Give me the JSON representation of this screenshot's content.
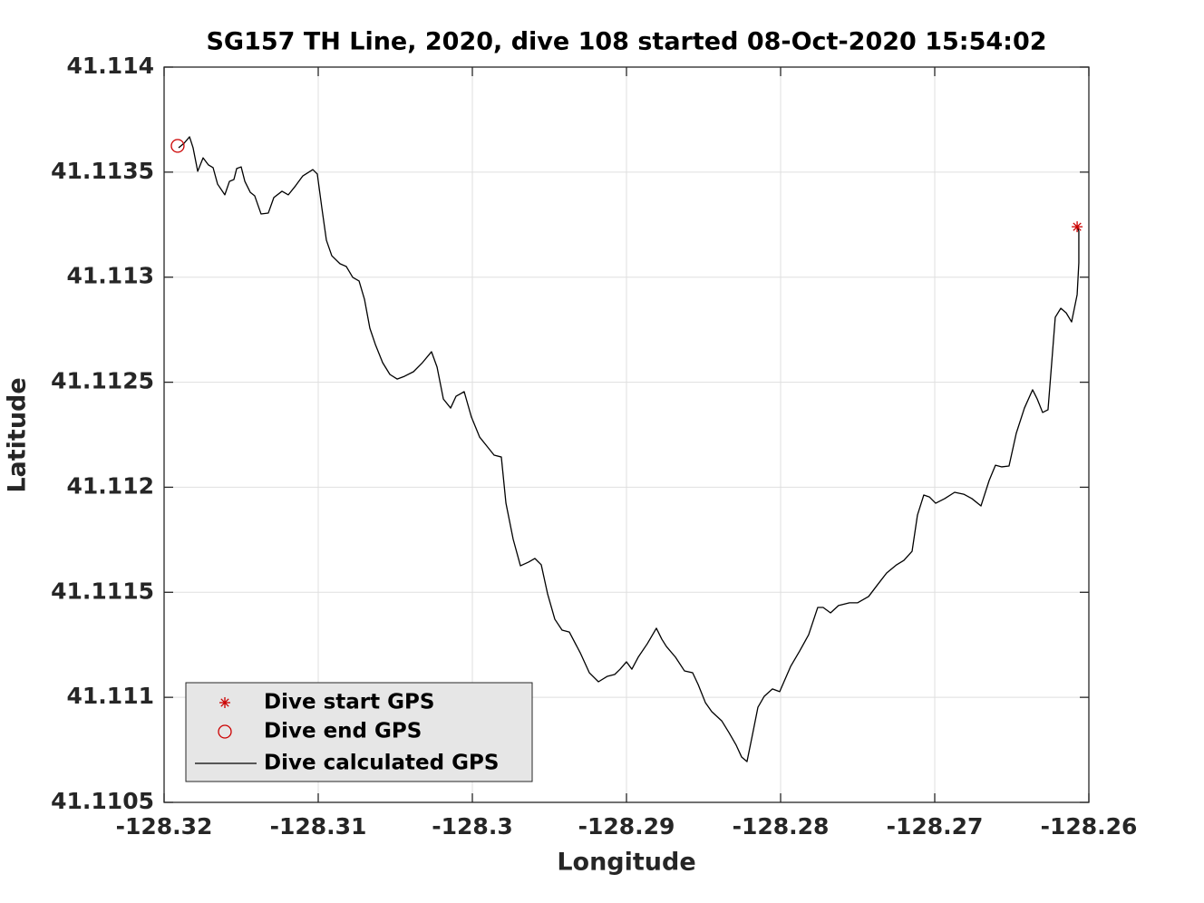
{
  "chart_data": {
    "type": "line",
    "title": "SG157 TH Line, 2020, dive 108 started 08-Oct-2020 15:54:02",
    "xlabel": "Longitude",
    "ylabel": "Latitude",
    "xlim": [
      -128.32,
      -128.26
    ],
    "xticks": [
      -128.32,
      -128.31,
      -128.3,
      -128.29,
      -128.28,
      -128.27,
      -128.26
    ],
    "ylim": [
      41.1105,
      41.114
    ],
    "yticks": [
      41.1105,
      41.111,
      41.1115,
      41.112,
      41.1125,
      41.113,
      41.1135,
      41.114
    ],
    "grid": true,
    "legend_position": "lower left",
    "series": [
      {
        "name": "Dive start GPS",
        "color": "#cc0000",
        "marker": "star",
        "x": [
          -128.26076
        ],
        "values": [
          41.11324
        ]
      },
      {
        "name": "Dive end GPS",
        "color": "#cc0000",
        "marker": "circle",
        "x": [
          -128.31912
        ],
        "values": [
          41.113625
        ]
      },
      {
        "name": "Dive calculated GPS",
        "color": "#000000",
        "marker": "none",
        "x": [
          -128.31906,
          -128.31871,
          -128.31835,
          -128.31812,
          -128.31782,
          -128.31747,
          -128.31712,
          -128.31682,
          -128.31653,
          -128.31606,
          -128.31576,
          -128.31547,
          -128.31529,
          -128.315,
          -128.31476,
          -128.31441,
          -128.31412,
          -128.31371,
          -128.31324,
          -128.31288,
          -128.31235,
          -128.31194,
          -128.31147,
          -128.311,
          -128.31035,
          -128.31006,
          -128.30976,
          -128.30947,
          -128.30912,
          -128.30859,
          -128.30818,
          -128.30776,
          -128.30735,
          -128.307,
          -128.30665,
          -128.30629,
          -128.30582,
          -128.30535,
          -128.30488,
          -128.30441,
          -128.30382,
          -128.30324,
          -128.30265,
          -128.30229,
          -128.30188,
          -128.30141,
          -128.30106,
          -128.30053,
          -128.30006,
          -128.29953,
          -128.29906,
          -128.29859,
          -128.29812,
          -128.29782,
          -128.29735,
          -128.29688,
          -128.29635,
          -128.29594,
          -128.29553,
          -128.29512,
          -128.29465,
          -128.29418,
          -128.29371,
          -128.293,
          -128.29241,
          -128.29182,
          -128.29124,
          -128.29076,
          -128.29041,
          -128.29,
          -128.28965,
          -128.28924,
          -128.28865,
          -128.28806,
          -128.28771,
          -128.28741,
          -128.28682,
          -128.28624,
          -128.28571,
          -128.28535,
          -128.28488,
          -128.28447,
          -128.28382,
          -128.28335,
          -128.28288,
          -128.28253,
          -128.28218,
          -128.28182,
          -128.28147,
          -128.28106,
          -128.28053,
          -128.28006,
          -128.27935,
          -128.27876,
          -128.27818,
          -128.27759,
          -128.27724,
          -128.27676,
          -128.27624,
          -128.27553,
          -128.275,
          -128.27429,
          -128.27371,
          -128.27312,
          -128.27247,
          -128.272,
          -128.27147,
          -128.27112,
          -128.27071,
          -128.27035,
          -128.26994,
          -128.26935,
          -128.26871,
          -128.26812,
          -128.26759,
          -128.267,
          -128.26647,
          -128.26606,
          -128.26565,
          -128.26518,
          -128.26471,
          -128.26418,
          -128.26365,
          -128.26335,
          -128.263,
          -128.26265,
          -128.26241,
          -128.26218,
          -128.26182,
          -128.26147,
          -128.26112,
          -128.26076,
          -128.26065,
          -128.26065,
          -128.26076
        ],
        "values": [
          41.113616,
          41.113637,
          41.113668,
          41.113616,
          41.113504,
          41.113568,
          41.113534,
          41.113521,
          41.113443,
          41.113392,
          41.113456,
          41.113465,
          41.113517,
          41.113525,
          41.113456,
          41.113404,
          41.113387,
          41.113301,
          41.113305,
          41.113379,
          41.113409,
          41.113392,
          41.113435,
          41.113482,
          41.113512,
          41.113491,
          41.113327,
          41.113176,
          41.113102,
          41.113064,
          41.113051,
          41.112999,
          41.112982,
          41.112895,
          41.112757,
          41.112679,
          41.112593,
          41.112537,
          41.112515,
          41.112528,
          41.11255,
          41.112593,
          41.112645,
          41.112572,
          41.11242,
          41.112377,
          41.112433,
          41.112455,
          41.112334,
          41.112239,
          41.112196,
          41.112153,
          41.112144,
          41.111924,
          41.111752,
          41.111626,
          41.111644,
          41.111661,
          41.111631,
          41.111493,
          41.111372,
          41.11132,
          41.111311,
          41.111212,
          41.111117,
          41.111074,
          41.1111,
          41.111109,
          41.111134,
          41.111169,
          41.111134,
          41.111191,
          41.111255,
          41.111329,
          41.111277,
          41.111242,
          41.111191,
          41.111126,
          41.111117,
          41.111061,
          41.110975,
          41.110932,
          41.110888,
          41.110832,
          41.110772,
          41.110716,
          41.110694,
          41.110824,
          41.110953,
          41.111005,
          41.11104,
          41.111027,
          41.111147,
          41.111221,
          41.111298,
          41.111428,
          41.111428,
          41.111402,
          41.111437,
          41.11145,
          41.11145,
          41.11148,
          41.111536,
          41.111592,
          41.111631,
          41.111652,
          41.111695,
          41.111868,
          41.111963,
          41.111954,
          41.111924,
          41.111946,
          41.111976,
          41.111967,
          41.111946,
          41.111911,
          41.112032,
          41.112105,
          41.112097,
          41.112101,
          41.112257,
          41.112377,
          41.112464,
          41.11242,
          41.112356,
          41.112369,
          41.112593,
          41.112809,
          41.112852,
          41.11283,
          41.112787,
          41.112917,
          41.113068,
          41.113219,
          41.11324
        ]
      }
    ]
  }
}
